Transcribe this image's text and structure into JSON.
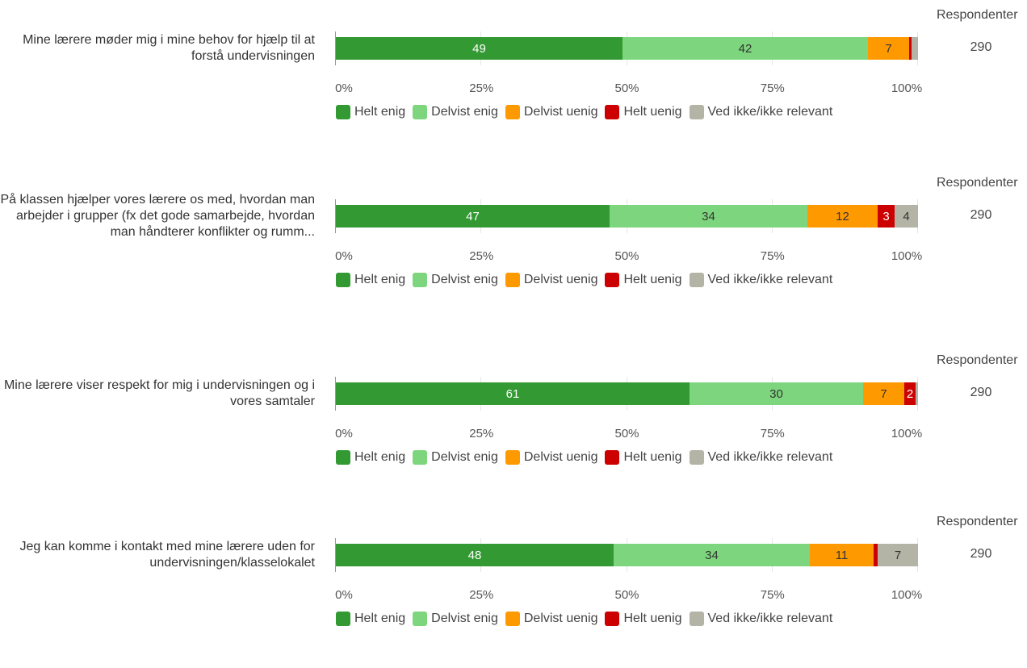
{
  "respondents_label": "Respondenter",
  "tick_labels": [
    "0%",
    "25%",
    "50%",
    "75%",
    "100%"
  ],
  "colors": {
    "Helt enig": "#339933",
    "Delvist enig": "#7dd67d",
    "Delvist uenig": "#ff9900",
    "Helt uenig": "#cc0000",
    "Ved ikke/ikke relevant": "#b3b3a6"
  },
  "legend": [
    "Helt enig",
    "Delvist enig",
    "Delvist uenig",
    "Helt uenig",
    "Ved ikke/ikke relevant"
  ],
  "chart_data": [
    {
      "type": "bar",
      "orientation": "horizontal-stacked",
      "question": "Mine lærere møder mig i mine behov for hjælp til at forstå undervisningen",
      "respondents": "290",
      "xlim": [
        0,
        100
      ],
      "series": [
        {
          "name": "Helt enig",
          "value": 49,
          "label": "49"
        },
        {
          "name": "Delvist enig",
          "value": 42,
          "label": "42"
        },
        {
          "name": "Delvist uenig",
          "value": 7,
          "label": "7"
        },
        {
          "name": "Helt uenig",
          "value": 0.4,
          "label": ""
        },
        {
          "name": "Ved ikke/ikke relevant",
          "value": 1.1,
          "label": ""
        }
      ]
    },
    {
      "type": "bar",
      "orientation": "horizontal-stacked",
      "question": "På klassen hjælper vores lærere os med, hvordan man arbejder i grupper (fx det gode samarbejde, hvordan man håndterer konflikter og rumm...",
      "respondents": "290",
      "xlim": [
        0,
        100
      ],
      "series": [
        {
          "name": "Helt enig",
          "value": 47,
          "label": "47"
        },
        {
          "name": "Delvist enig",
          "value": 34,
          "label": "34"
        },
        {
          "name": "Delvist uenig",
          "value": 12,
          "label": "12"
        },
        {
          "name": "Helt uenig",
          "value": 3,
          "label": "3"
        },
        {
          "name": "Ved ikke/ikke relevant",
          "value": 4,
          "label": "4"
        }
      ]
    },
    {
      "type": "bar",
      "orientation": "horizontal-stacked",
      "question": "Mine lærere viser respekt for mig i undervisningen og i vores samtaler",
      "respondents": "290",
      "xlim": [
        0,
        100
      ],
      "series": [
        {
          "name": "Helt enig",
          "value": 61,
          "label": "61"
        },
        {
          "name": "Delvist enig",
          "value": 30,
          "label": "30"
        },
        {
          "name": "Delvist uenig",
          "value": 7,
          "label": "7"
        },
        {
          "name": "Helt uenig",
          "value": 2,
          "label": "2"
        },
        {
          "name": "Ved ikke/ikke relevant",
          "value": 0.4,
          "label": ""
        }
      ]
    },
    {
      "type": "bar",
      "orientation": "horizontal-stacked",
      "question": "Jeg kan komme i kontakt med mine lærere uden for undervisningen/klasselokalet",
      "respondents": "290",
      "xlim": [
        0,
        100
      ],
      "series": [
        {
          "name": "Helt enig",
          "value": 48,
          "label": "48"
        },
        {
          "name": "Delvist enig",
          "value": 34,
          "label": "34"
        },
        {
          "name": "Delvist uenig",
          "value": 11,
          "label": "11"
        },
        {
          "name": "Helt uenig",
          "value": 0.7,
          "label": ""
        },
        {
          "name": "Ved ikke/ikke relevant",
          "value": 7,
          "label": "7"
        }
      ]
    }
  ]
}
